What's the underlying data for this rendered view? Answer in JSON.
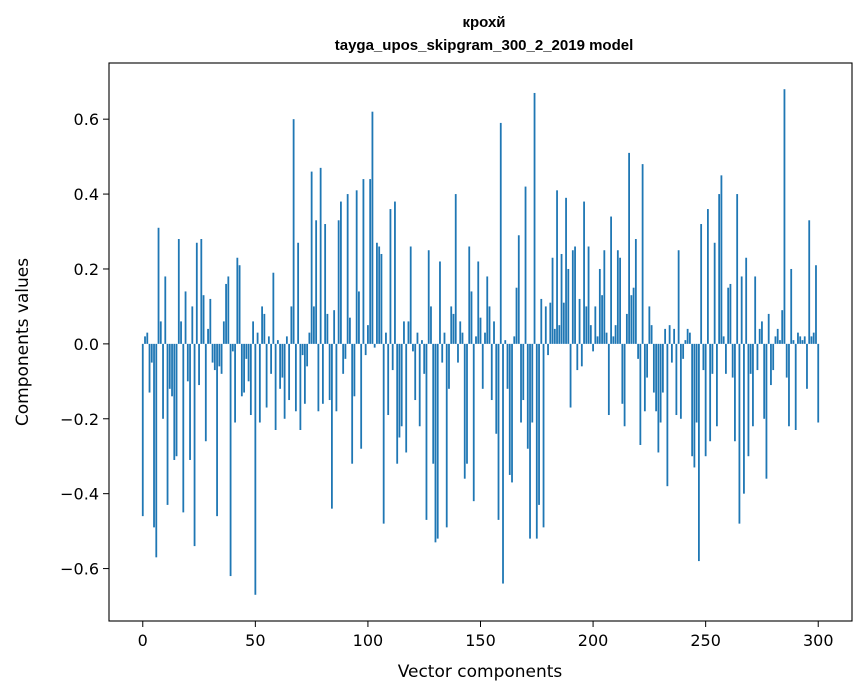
{
  "chart_data": {
    "type": "bar",
    "title": "крохй",
    "subtitle": "tayga_upos_skipgram_300_2_2019 model",
    "xlabel": "Vector components",
    "ylabel": "Components values",
    "xlim": [
      -15,
      315
    ],
    "ylim": [
      -0.74,
      0.75
    ],
    "xticks": [
      0,
      50,
      100,
      150,
      200,
      250,
      300
    ],
    "xtick_labels": [
      "0",
      "50",
      "100",
      "150",
      "200",
      "250",
      "300"
    ],
    "yticks": [
      -0.6,
      -0.4,
      -0.2,
      0.0,
      0.2,
      0.4,
      0.6
    ],
    "ytick_labels": [
      "−0.6",
      "−0.4",
      "−0.2",
      "0.0",
      "0.2",
      "0.4",
      "0.6"
    ],
    "bar_color": "#1f77b4",
    "grid": false,
    "values": [
      -0.46,
      0.02,
      0.03,
      -0.13,
      -0.05,
      -0.49,
      -0.57,
      0.31,
      0.06,
      -0.2,
      0.18,
      -0.43,
      -0.12,
      -0.14,
      -0.31,
      -0.3,
      0.28,
      0.06,
      -0.45,
      0.14,
      -0.1,
      -0.31,
      0.1,
      -0.54,
      0.27,
      -0.11,
      0.28,
      0.13,
      -0.26,
      0.04,
      0.12,
      -0.05,
      -0.07,
      -0.46,
      -0.06,
      -0.08,
      0.06,
      0.16,
      0.18,
      -0.62,
      -0.02,
      -0.21,
      0.23,
      0.21,
      -0.14,
      -0.13,
      -0.04,
      -0.1,
      -0.19,
      0.06,
      -0.67,
      0.03,
      -0.21,
      0.1,
      0.08,
      -0.17,
      0.02,
      -0.08,
      0.19,
      -0.23,
      0.01,
      -0.12,
      -0.09,
      -0.2,
      0.02,
      -0.15,
      0.1,
      0.6,
      -0.18,
      0.27,
      -0.23,
      -0.03,
      -0.16,
      -0.06,
      0.03,
      0.46,
      0.1,
      0.33,
      -0.18,
      0.47,
      -0.16,
      0.32,
      0.08,
      -0.15,
      -0.44,
      0.09,
      -0.18,
      0.33,
      0.38,
      -0.08,
      -0.04,
      0.4,
      0.07,
      -0.32,
      -0.14,
      0.41,
      0.14,
      -0.28,
      0.44,
      -0.03,
      0.05,
      0.44,
      0.62,
      -0.01,
      0.27,
      0.26,
      0.24,
      -0.48,
      0.03,
      -0.19,
      0.36,
      -0.07,
      0.38,
      -0.32,
      -0.25,
      -0.22,
      0.06,
      -0.29,
      0.06,
      0.26,
      -0.02,
      -0.15,
      0.03,
      -0.22,
      0.01,
      -0.08,
      -0.47,
      0.25,
      0.1,
      -0.32,
      -0.53,
      -0.52,
      0.22,
      -0.05,
      0.03,
      -0.49,
      -0.12,
      0.1,
      0.08,
      0.4,
      -0.05,
      0.06,
      0.03,
      -0.36,
      -0.32,
      0.26,
      0.14,
      -0.42,
      0.02,
      0.22,
      0.07,
      -0.12,
      0.03,
      0.18,
      0.1,
      -0.15,
      0.06,
      -0.24,
      -0.47,
      0.59,
      -0.64,
      0.01,
      -0.12,
      -0.35,
      -0.37,
      0.02,
      0.15,
      0.29,
      -0.21,
      -0.15,
      0.42,
      -0.28,
      -0.52,
      -0.21,
      0.67,
      -0.52,
      -0.43,
      0.12,
      -0.49,
      0.1,
      -0.03,
      0.11,
      0.23,
      0.04,
      0.41,
      0.05,
      0.24,
      0.11,
      0.39,
      0.2,
      -0.17,
      0.25,
      0.26,
      -0.07,
      0.12,
      -0.06,
      0.38,
      0.1,
      0.26,
      0.05,
      -0.02,
      0.1,
      0.02,
      0.2,
      0.13,
      0.25,
      0.03,
      -0.19,
      0.34,
      0.02,
      0.05,
      0.25,
      0.23,
      -0.16,
      -0.22,
      0.08,
      0.51,
      0.13,
      0.15,
      0.28,
      -0.04,
      -0.27,
      0.48,
      -0.18,
      -0.09,
      0.1,
      0.05,
      -0.13,
      -0.18,
      -0.29,
      -0.21,
      -0.13,
      0.04,
      -0.38,
      0.05,
      -0.05,
      0.04,
      -0.19,
      0.25,
      -0.2,
      -0.04,
      0.01,
      0.04,
      0.03,
      -0.3,
      -0.33,
      -0.21,
      -0.58,
      0.32,
      -0.07,
      -0.3,
      0.36,
      -0.26,
      -0.08,
      0.27,
      -0.22,
      0.4,
      0.45,
      0.02,
      -0.08,
      0.15,
      0.16,
      -0.09,
      -0.26,
      0.4,
      -0.48,
      0.18,
      -0.4,
      0.23,
      -0.3,
      -0.08,
      -0.22,
      0.18,
      -0.07,
      0.04,
      0.06,
      -0.2,
      -0.36,
      0.08,
      -0.11,
      -0.07,
      0.02,
      0.04,
      0.01,
      0.09,
      0.68,
      -0.09,
      -0.22,
      0.2,
      0.01,
      -0.23,
      0.03,
      0.02,
      0.01,
      0.02,
      -0.12,
      0.33,
      0.02,
      0.03,
      0.21,
      -0.21
    ]
  }
}
